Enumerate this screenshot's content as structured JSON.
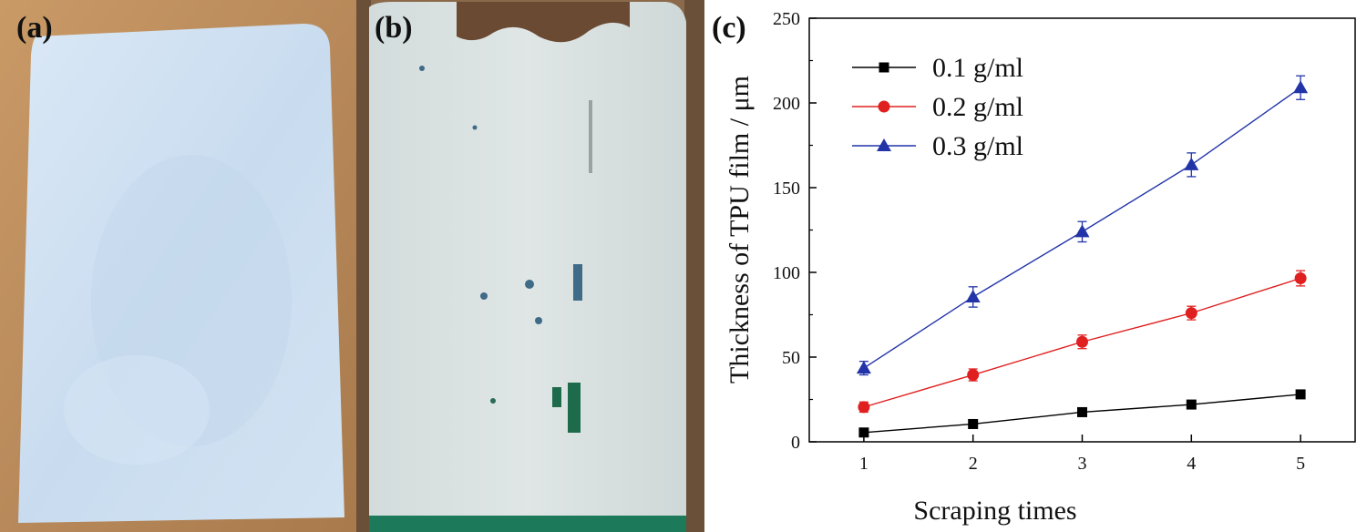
{
  "figure": {
    "panels": [
      {
        "label": "(a)"
      },
      {
        "label": "(b)"
      },
      {
        "label": "(c)"
      }
    ]
  },
  "chart_data": {
    "type": "line",
    "title": "",
    "xlabel": "Scraping times",
    "ylabel": "Thickness of TPU film / μm",
    "x": [
      1,
      2,
      3,
      4,
      5
    ],
    "xticks": [
      "1",
      "2",
      "3",
      "4",
      "5"
    ],
    "yticks": [
      "0",
      "50",
      "100",
      "150",
      "200",
      "250"
    ],
    "xlim": [
      0.5,
      5.5
    ],
    "ylim": [
      0,
      250
    ],
    "grid": false,
    "legend_position": "top-left",
    "series": [
      {
        "name": "0.1 g/ml",
        "marker": "square",
        "color": "#000000",
        "values": [
          5.5,
          10.5,
          17.5,
          22,
          28
        ],
        "errors": [
          1,
          1,
          1.5,
          2,
          2
        ]
      },
      {
        "name": "0.2 g/ml",
        "marker": "circle",
        "color": "#e02020",
        "values": [
          20.5,
          39.5,
          59,
          76,
          96.5
        ],
        "errors": [
          3,
          3.5,
          4,
          4,
          4.5
        ]
      },
      {
        "name": "0.3 g/ml",
        "marker": "triangle",
        "color": "#2234a8",
        "values": [
          43.5,
          85.5,
          124,
          163.5,
          209
        ],
        "errors": [
          4,
          6,
          6,
          7,
          7
        ]
      }
    ]
  }
}
